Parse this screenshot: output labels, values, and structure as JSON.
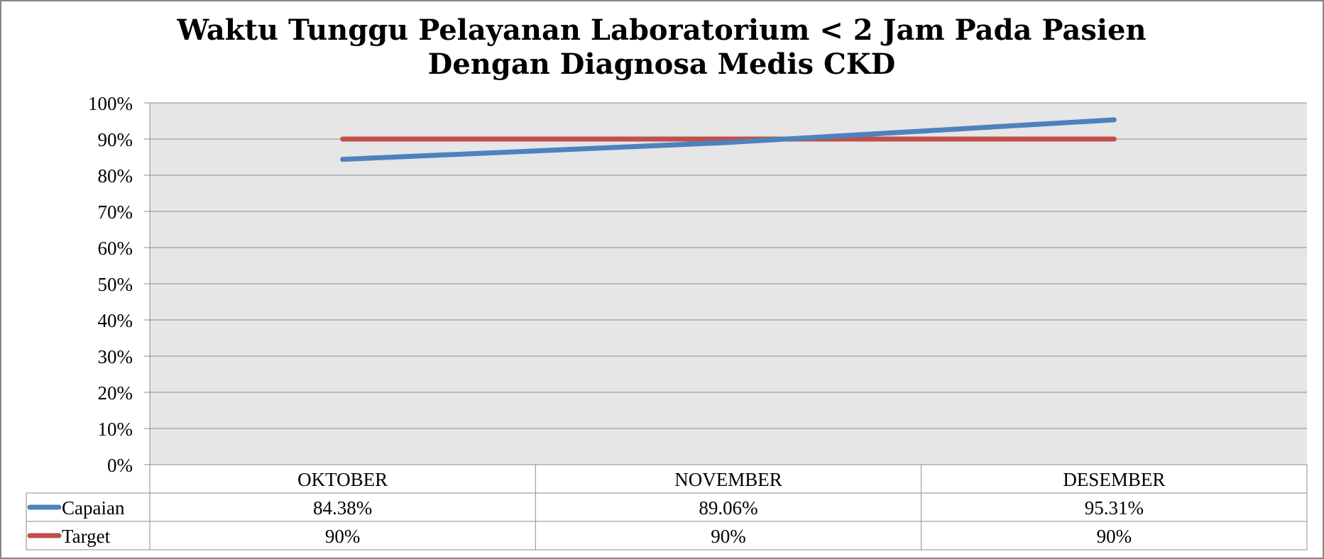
{
  "chart_data": {
    "type": "line",
    "title_lines": [
      "Waktu Tunggu Pelayanan Laboratorium < 2 Jam Pada Pasien",
      "Dengan Diagnosa Medis CKD"
    ],
    "categories": [
      "OKTOBER",
      "NOVEMBER",
      "DESEMBER"
    ],
    "series": [
      {
        "name": "Capaian",
        "values": [
          84.38,
          89.06,
          95.31
        ],
        "labels": [
          "84.38%",
          "89.06%",
          "95.31%"
        ],
        "color": "#4f81bd"
      },
      {
        "name": "Target",
        "values": [
          90,
          90,
          90
        ],
        "labels": [
          "90%",
          "90%",
          "90%"
        ],
        "color": "#c0504d"
      }
    ],
    "ylim": [
      0,
      100
    ],
    "yticks": [
      "0%",
      "10%",
      "20%",
      "30%",
      "40%",
      "50%",
      "60%",
      "70%",
      "80%",
      "90%",
      "100%"
    ],
    "grid": true,
    "plot_background": "#e6e6e6",
    "legend": "data-table"
  }
}
